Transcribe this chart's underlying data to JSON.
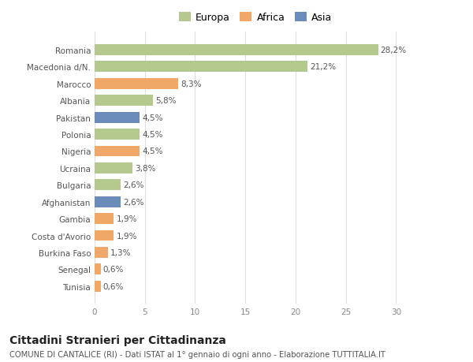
{
  "categories": [
    "Romania",
    "Macedonia d/N.",
    "Marocco",
    "Albania",
    "Pakistan",
    "Polonia",
    "Nigeria",
    "Ucraina",
    "Bulgaria",
    "Afghanistan",
    "Gambia",
    "Costa d'Avorio",
    "Burkina Faso",
    "Senegal",
    "Tunisia"
  ],
  "values": [
    28.2,
    21.2,
    8.3,
    5.8,
    4.5,
    4.5,
    4.5,
    3.8,
    2.6,
    2.6,
    1.9,
    1.9,
    1.3,
    0.6,
    0.6
  ],
  "labels": [
    "28,2%",
    "21,2%",
    "8,3%",
    "5,8%",
    "4,5%",
    "4,5%",
    "4,5%",
    "3,8%",
    "2,6%",
    "2,6%",
    "1,9%",
    "1,9%",
    "1,3%",
    "0,6%",
    "0,6%"
  ],
  "colors": [
    "#b5c98e",
    "#b5c98e",
    "#f0a868",
    "#b5c98e",
    "#6b8cba",
    "#b5c98e",
    "#f0a868",
    "#b5c98e",
    "#b5c98e",
    "#6b8cba",
    "#f0a868",
    "#f0a868",
    "#f0a868",
    "#f0a868",
    "#f0a868"
  ],
  "legend": [
    {
      "label": "Europa",
      "color": "#b5c98e"
    },
    {
      "label": "Africa",
      "color": "#f0a868"
    },
    {
      "label": "Asia",
      "color": "#6b8cba"
    }
  ],
  "xlim": [
    0,
    32
  ],
  "xticks": [
    0,
    5,
    10,
    15,
    20,
    25,
    30
  ],
  "title": "Cittadini Stranieri per Cittadinanza",
  "subtitle": "COMUNE DI CANTALICE (RI) - Dati ISTAT al 1° gennaio di ogni anno - Elaborazione TUTTITALIA.IT",
  "bg_color": "#ffffff",
  "grid_color": "#e0e0e0",
  "bar_height": 0.65,
  "label_fontsize": 7.5,
  "tick_fontsize": 7.5,
  "title_fontsize": 10,
  "subtitle_fontsize": 7.2,
  "legend_fontsize": 9
}
